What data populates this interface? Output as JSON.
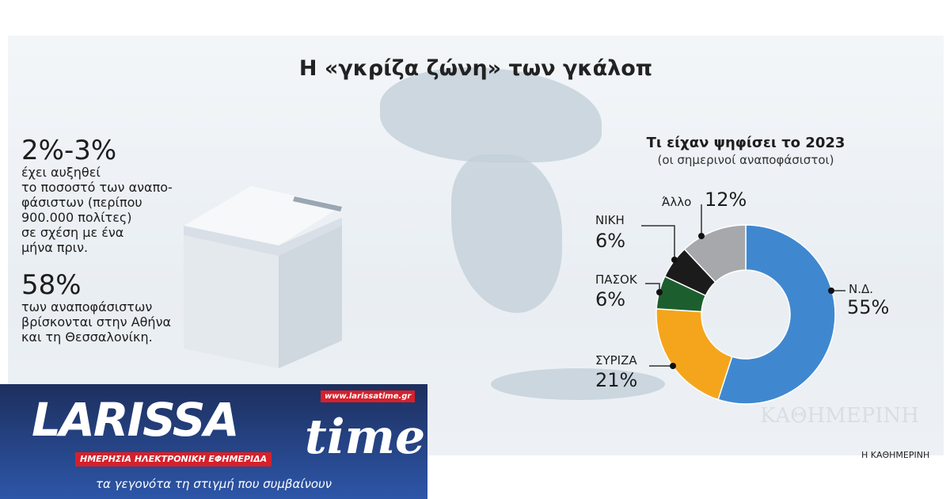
{
  "title": "Η «γκρίζα ζώνη» των γκάλοπ",
  "stats": [
    {
      "value": "2%-3%",
      "lines": [
        "έχει αυξηθεί",
        "το ποσοστό των αναπο-",
        "φάσιστων (περίπου",
        "900.000 πολίτες)",
        "σε σχέση με ένα",
        "μήνα πριν."
      ]
    },
    {
      "value": "58%",
      "lines": [
        "των αναποφάσιστων",
        "βρίσκονται στην Αθήνα",
        "και τη Θεσσαλονίκη."
      ]
    }
  ],
  "chart_data": {
    "type": "pie",
    "donut": true,
    "title": "Τι είχαν ψηφίσει το 2023",
    "subtitle": "(οι σημερινοί αναποφάσιστοι)",
    "categories": [
      "Ν.Δ.",
      "ΣΥΡΙΖΑ",
      "ΠΑΣΟΚ",
      "ΝΙΚΗ",
      "Άλλο"
    ],
    "values": [
      55,
      21,
      6,
      6,
      12
    ],
    "labels": [
      "55%",
      "21%",
      "6%",
      "6%",
      "12%"
    ],
    "colors": [
      "#3f88d0",
      "#f5a51c",
      "#1d5e2e",
      "#1b1b1b",
      "#a6a8ab"
    ]
  },
  "source": "Η ΚΑΘΗΜΕΡΙΝΗ",
  "watermark": "ΚΑΘΗΜΕΡΙΝΗ",
  "logo": {
    "name": "LARISSAtime",
    "url": "www.larissatime.gr",
    "subtitle": "ΗΜΕΡΗΣΙΑ ΗΛΕΚΤΡΟΝΙΚΗ ΕΦΗΜΕΡΙΔΑ",
    "tagline": "τα γεγονότα τη στιγμή που συμβαίνουν"
  }
}
